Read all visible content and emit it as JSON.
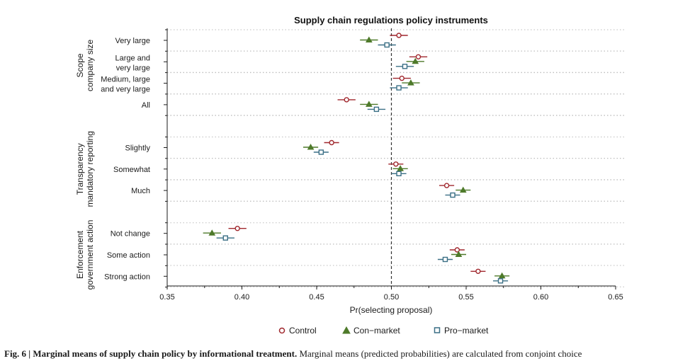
{
  "chart_data": {
    "type": "scatter",
    "title": "Supply chain regulations policy instruments",
    "xlabel": "Pr(selecting proposal)",
    "xlim": [
      0.35,
      0.65
    ],
    "xticks": [
      "0.35",
      "0.40",
      "0.45",
      "0.50",
      "0.55",
      "0.60",
      "0.65"
    ],
    "reference_line": 0.5,
    "grid": "dotted horizontal",
    "legend_position": "bottom",
    "groups": [
      {
        "label_line1": "Scope",
        "label_line2": "company size",
        "rows": [
          {
            "label": [
              "Very large"
            ],
            "values": [
              0.505,
              0.485,
              0.497
            ],
            "ci": [
              0.006,
              0.006,
              0.006
            ]
          },
          {
            "label": [
              "Large and",
              "very large"
            ],
            "values": [
              0.518,
              0.516,
              0.509
            ],
            "ci": [
              0.006,
              0.006,
              0.006
            ]
          },
          {
            "label": [
              "Medium, large",
              "and very large"
            ],
            "values": [
              0.507,
              0.513,
              0.505
            ],
            "ci": [
              0.006,
              0.006,
              0.006
            ]
          },
          {
            "label": [
              "All"
            ],
            "values": [
              0.47,
              0.485,
              0.49
            ],
            "ci": [
              0.006,
              0.006,
              0.006
            ]
          }
        ]
      },
      {
        "label_line1": "Transparency",
        "label_line2": "mandatory reporting",
        "rows": [
          {
            "label": [
              "Slightly"
            ],
            "values": [
              0.46,
              0.446,
              0.453
            ],
            "ci": [
              0.005,
              0.005,
              0.005
            ]
          },
          {
            "label": [
              "Somewhat"
            ],
            "values": [
              0.503,
              0.506,
              0.505
            ],
            "ci": [
              0.005,
              0.005,
              0.005
            ]
          },
          {
            "label": [
              "Much"
            ],
            "values": [
              0.537,
              0.548,
              0.541
            ],
            "ci": [
              0.005,
              0.005,
              0.005
            ]
          }
        ]
      },
      {
        "label_line1": "Enforcement",
        "label_line2": "government action",
        "rows": [
          {
            "label": [
              "Not change"
            ],
            "values": [
              0.397,
              0.38,
              0.389
            ],
            "ci": [
              0.006,
              0.006,
              0.006
            ]
          },
          {
            "label": [
              "Some action"
            ],
            "values": [
              0.544,
              0.545,
              0.536
            ],
            "ci": [
              0.005,
              0.005,
              0.005
            ]
          },
          {
            "label": [
              "Strong action"
            ],
            "values": [
              0.558,
              0.574,
              0.573
            ],
            "ci": [
              0.005,
              0.005,
              0.005
            ]
          }
        ]
      }
    ],
    "series": [
      {
        "name": "Control",
        "marker": "circle",
        "color": "#a0272d"
      },
      {
        "name": "Con−market",
        "marker": "triangle",
        "color": "#4e7a2a"
      },
      {
        "name": "Pro−market",
        "marker": "square",
        "color": "#3a6f85"
      }
    ]
  },
  "caption": {
    "bold": "Fig. 6 | Marginal means of supply chain policy by informational treatment.",
    "text": " Marginal means (predicted probabilities) are calculated from conjoint choice"
  },
  "colors": {
    "axis": "#1a1a1a",
    "grid": "#bdbdbd",
    "refline": "#333333"
  }
}
